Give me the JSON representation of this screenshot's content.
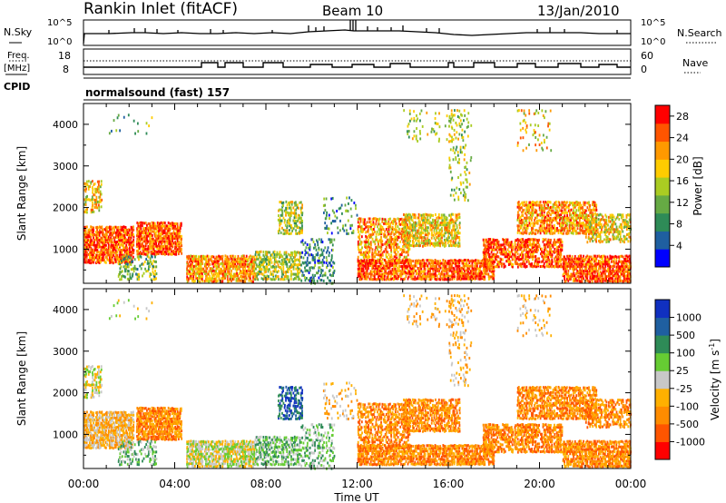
{
  "header": {
    "title": "Rankin Inlet (fitACF)",
    "beam": "Beam 10",
    "date": "13/Jan/2010"
  },
  "noise_panel": {
    "left_label": "N.Sky",
    "right_label": "N.Search",
    "left_ticks": [
      "10^5",
      "10^0"
    ],
    "right_ticks": [
      "10^5",
      "10^0"
    ]
  },
  "freq_panel": {
    "left_label_1": "Freq.",
    "left_label_2": "[MHz]",
    "right_label": "Nave",
    "left_ticks": [
      "18",
      "8"
    ],
    "right_ticks": [
      "60",
      "0"
    ]
  },
  "cpid": {
    "label": "CPID",
    "mode_text": "normalsound (fast) 157"
  },
  "colors": {
    "power_scale": [
      "#0000ff",
      "#1f5fa0",
      "#2e8b57",
      "#66aa44",
      "#aacc22",
      "#ffcc00",
      "#ff9900",
      "#ff5500",
      "#ff0000"
    ],
    "velocity_scale": [
      "#ff0000",
      "#ff5500",
      "#ff8c00",
      "#ffb000",
      "#c8c8c8",
      "#66cc33",
      "#2e8b57",
      "#1f5fa0",
      "#1030c0"
    ]
  },
  "chart_data": [
    {
      "type": "heatmap",
      "name": "Power",
      "xlabel": "",
      "ylabel": "Slant Range [km]",
      "yticks": [
        "1000",
        "2000",
        "3000",
        "4000"
      ],
      "ylim": [
        180,
        4500
      ],
      "xlim": [
        0,
        24
      ],
      "colorbar": {
        "label": "Power [dB]",
        "ticks": [
          "4",
          "8",
          "12",
          "16",
          "20",
          "24",
          "28"
        ],
        "range": [
          0,
          30
        ]
      }
    },
    {
      "type": "heatmap",
      "name": "Velocity",
      "xlabel": "Time UT",
      "ylabel": "Slant Range [km]",
      "yticks": [
        "1000",
        "2000",
        "3000",
        "4000"
      ],
      "ylim": [
        180,
        4500
      ],
      "xlim": [
        0,
        24
      ],
      "xticks": [
        "00:00",
        "04:00",
        "08:00",
        "12:00",
        "16:00",
        "20:00",
        "00:00"
      ],
      "colorbar": {
        "label": "Velocity [m s^-1]",
        "ticks": [
          "1000",
          "500",
          "100",
          "25",
          "-25",
          "-100",
          "-500",
          "-1000"
        ]
      }
    }
  ]
}
